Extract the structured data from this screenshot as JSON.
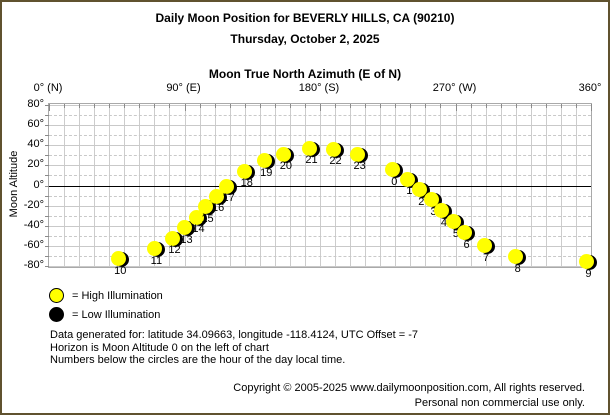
{
  "chart_data": {
    "type": "scatter",
    "title": "Daily Moon Position for BEVERLY HILLS, CA (90210)",
    "subtitle": "Thursday, October 2, 2025",
    "xlabel": "Moon True North Azimuth (E of N)",
    "ylabel": "Moon Altitude",
    "xlim": [
      0,
      360
    ],
    "ylim": [
      -81,
      81
    ],
    "grid": "10-degree grid; minor horizontal lines dashed; horizon line at altitude 0 solid black",
    "legend_position": "below-left",
    "x_ticks": [
      {
        "az": 0,
        "label": "0° (N)"
      },
      {
        "az": 90,
        "label": "90° (E)"
      },
      {
        "az": 180,
        "label": "180° (S)"
      },
      {
        "az": 270,
        "label": "270° (W)"
      },
      {
        "az": 360,
        "label": "360°"
      }
    ],
    "y_ticks": [
      {
        "alt": 80,
        "label": "80°"
      },
      {
        "alt": 60,
        "label": "60°"
      },
      {
        "alt": 40,
        "label": "40°"
      },
      {
        "alt": 20,
        "label": "20°"
      },
      {
        "alt": 0,
        "label": "0°"
      },
      {
        "alt": -20,
        "label": "-20°"
      },
      {
        "alt": -40,
        "label": "-40°"
      },
      {
        "alt": -60,
        "label": "-60°"
      },
      {
        "alt": -80,
        "label": "-80°"
      }
    ],
    "points": [
      {
        "hour": 0,
        "azimuth": 228,
        "altitude": 15.5,
        "illumination": "high"
      },
      {
        "hour": 1,
        "azimuth": 238,
        "altitude": 6,
        "illumination": "high"
      },
      {
        "hour": 2,
        "azimuth": 246,
        "altitude": -4,
        "illumination": "high"
      },
      {
        "hour": 3,
        "azimuth": 254,
        "altitude": -14,
        "illumination": "high"
      },
      {
        "hour": 4,
        "azimuth": 261,
        "altitude": -25,
        "illumination": "high"
      },
      {
        "hour": 5,
        "azimuth": 269,
        "altitude": -36,
        "illumination": "high"
      },
      {
        "hour": 6,
        "azimuth": 276,
        "altitude": -47,
        "illumination": "high"
      },
      {
        "hour": 7,
        "azimuth": 289,
        "altitude": -60,
        "illumination": "high"
      },
      {
        "hour": 8,
        "azimuth": 310,
        "altitude": -71,
        "illumination": "high"
      },
      {
        "hour": 9,
        "azimuth": 357,
        "altitude": -76,
        "illumination": "high"
      },
      {
        "hour": 10,
        "azimuth": 46,
        "altitude": -73,
        "illumination": "high"
      },
      {
        "hour": 11,
        "azimuth": 70,
        "altitude": -63,
        "illumination": "high"
      },
      {
        "hour": 12,
        "azimuth": 82,
        "altitude": -52.5,
        "illumination": "high"
      },
      {
        "hour": 13,
        "azimuth": 90,
        "altitude": -42,
        "illumination": "high"
      },
      {
        "hour": 14,
        "azimuth": 98,
        "altitude": -31.5,
        "illumination": "high"
      },
      {
        "hour": 15,
        "azimuth": 104,
        "altitude": -21,
        "illumination": "high"
      },
      {
        "hour": 16,
        "azimuth": 111,
        "altitude": -10.5,
        "illumination": "high"
      },
      {
        "hour": 17,
        "azimuth": 118,
        "altitude": -0.5,
        "illumination": "high"
      },
      {
        "hour": 18,
        "azimuth": 130,
        "altitude": 14,
        "illumination": "high"
      },
      {
        "hour": 19,
        "azimuth": 143,
        "altitude": 24.5,
        "illumination": "high"
      },
      {
        "hour": 20,
        "azimuth": 156,
        "altitude": 31,
        "illumination": "high"
      },
      {
        "hour": 21,
        "azimuth": 173,
        "altitude": 37,
        "illumination": "high"
      },
      {
        "hour": 22,
        "azimuth": 189,
        "altitude": 36,
        "illumination": "high"
      },
      {
        "hour": 23,
        "azimuth": 205,
        "altitude": 31,
        "illumination": "high"
      }
    ]
  },
  "legend": {
    "items": [
      {
        "label": "= High Illumination",
        "color": "#ffff00"
      },
      {
        "label": "= Low Illumination",
        "color": "#000000"
      }
    ]
  },
  "footer": {
    "lines": [
      "Data generated for: latitude 34.09663, longitude -118.4124, UTC Offset = -7",
      "Horizon is Moon Altitude 0 on the left of chart",
      "Numbers below the circles are the hour of the day local time."
    ]
  },
  "copyright": {
    "lines": [
      "Copyright © 2005-2025 www.dailymoonposition.com, All rights reserved.",
      "Personal non commercial use only."
    ]
  },
  "colors": {
    "frame_border": "#60522f",
    "grid": "#c9c9c9",
    "horizon_line": "#000000",
    "high_illumination": "#ffff00",
    "low_illumination": "#000000"
  }
}
